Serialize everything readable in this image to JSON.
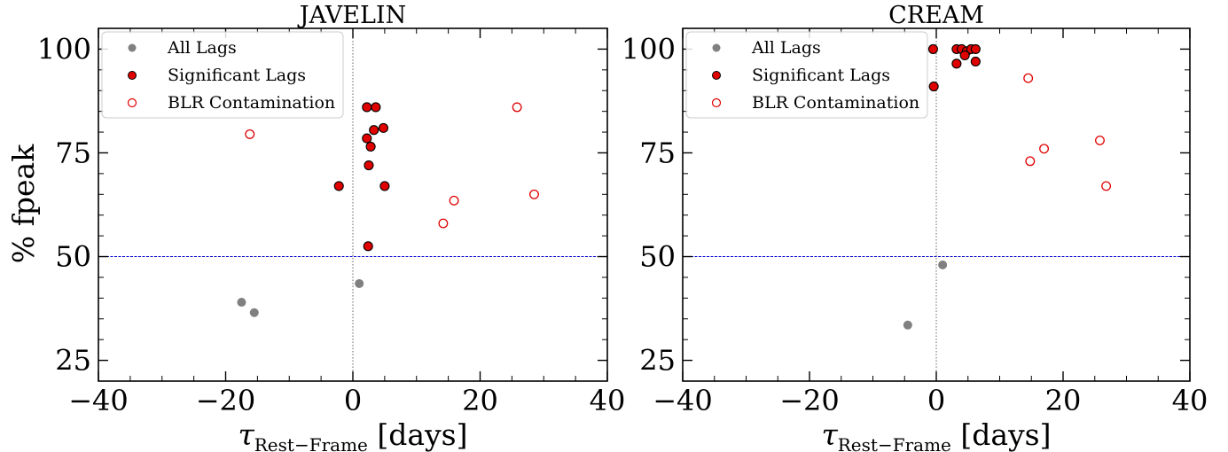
{
  "figure": {
    "ylabel": "% fpeak",
    "xlabel_main": "τ",
    "xlabel_sub": "Rest−Frame",
    "xlabel_unit": " [days]"
  },
  "legend": {
    "all_lags": "All Lags",
    "significant_lags": "Significant Lags",
    "blr_contamination": "BLR Contamination"
  },
  "colors": {
    "all_lags": "#808080",
    "significant_fill": "#e00000",
    "significant_edge": "#000000",
    "blr_edge": "#e00000",
    "threshold_line": "#0000cc",
    "zero_line": "#666666"
  },
  "chart_data": [
    {
      "type": "scatter",
      "title": "JAVELIN",
      "xlim": [
        -40,
        40
      ],
      "ylim": [
        20,
        105
      ],
      "xticks": [
        -40,
        -20,
        0,
        20,
        40
      ],
      "xtick_labels": [
        "−40",
        "−20",
        "0",
        "20",
        "40"
      ],
      "yticks": [
        25,
        50,
        75,
        100
      ],
      "ytick_labels": [
        "25",
        "50",
        "75",
        "100"
      ],
      "hline": 50,
      "vline": 0,
      "legend_position": "top-left",
      "series": [
        {
          "name": "All Lags",
          "style": "gray",
          "points": [
            [
              -17.5,
              39.0
            ],
            [
              -15.5,
              36.5
            ],
            [
              1.0,
              43.5
            ]
          ]
        },
        {
          "name": "Significant Lags",
          "style": "red-filled",
          "points": [
            [
              -2.2,
              67.0
            ],
            [
              2.2,
              86.0
            ],
            [
              3.6,
              86.0
            ],
            [
              2.2,
              78.5
            ],
            [
              3.3,
              80.5
            ],
            [
              4.8,
              81.0
            ],
            [
              2.8,
              76.5
            ],
            [
              2.5,
              72.0
            ],
            [
              5.0,
              67.0
            ],
            [
              2.4,
              52.5
            ]
          ]
        },
        {
          "name": "BLR Contamination",
          "style": "red-open",
          "points": [
            [
              -16.2,
              79.5
            ],
            [
              14.2,
              58.0
            ],
            [
              15.9,
              63.5
            ],
            [
              25.8,
              86.0
            ],
            [
              28.5,
              65.0
            ]
          ]
        }
      ]
    },
    {
      "type": "scatter",
      "title": "CREAM",
      "xlim": [
        -40,
        40
      ],
      "ylim": [
        20,
        105
      ],
      "xticks": [
        -40,
        -20,
        0,
        20,
        40
      ],
      "xtick_labels": [
        "−40",
        "−20",
        "0",
        "20",
        "40"
      ],
      "yticks": [
        25,
        50,
        75,
        100
      ],
      "ytick_labels": [
        "25",
        "50",
        "75",
        "100"
      ],
      "hline": 50,
      "vline": 0,
      "legend_position": "top-left",
      "series": [
        {
          "name": "All Lags",
          "style": "gray",
          "points": [
            [
              -4.5,
              33.5
            ],
            [
              1.0,
              48.0
            ]
          ]
        },
        {
          "name": "Significant Lags",
          "style": "red-filled",
          "points": [
            [
              -0.5,
              100.0
            ],
            [
              -0.4,
              91.0
            ],
            [
              3.2,
              100.0
            ],
            [
              4.0,
              100.0
            ],
            [
              4.8,
              99.5
            ],
            [
              5.5,
              100.0
            ],
            [
              6.2,
              100.0
            ],
            [
              4.5,
              98.5
            ],
            [
              3.2,
              96.5
            ],
            [
              6.2,
              97.0
            ]
          ]
        },
        {
          "name": "BLR Contamination",
          "style": "red-open",
          "points": [
            [
              14.5,
              93.0
            ],
            [
              14.8,
              73.0
            ],
            [
              17.0,
              76.0
            ],
            [
              25.8,
              78.0
            ],
            [
              26.8,
              67.0
            ]
          ]
        }
      ]
    }
  ]
}
